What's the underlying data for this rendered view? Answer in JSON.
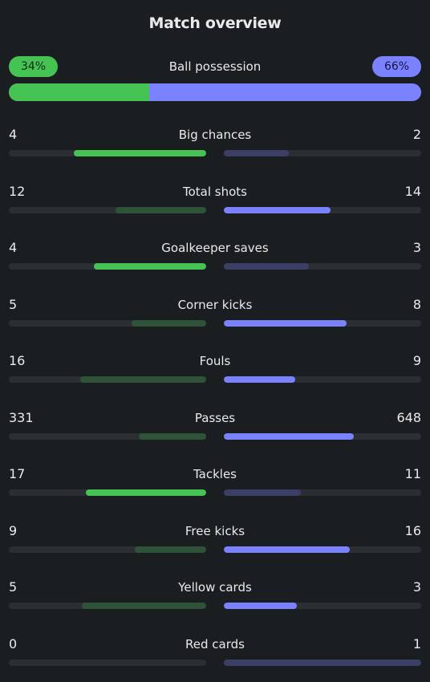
{
  "title": "Match overview",
  "possession": {
    "label": "Ball possession",
    "home_text": "34%",
    "away_text": "66%",
    "home_share": 0.34
  },
  "colors": {
    "home_strong": "#45c453",
    "home_weak": "#2f5336",
    "away_strong": "#7b82ff",
    "away_weak": "#3b3f66",
    "track": "#2b2f33"
  },
  "stats": [
    {
      "label": "Big chances",
      "home": "4",
      "away": "2",
      "home_share": 0.67,
      "away_share": 0.33,
      "leader": "home"
    },
    {
      "label": "Total shots",
      "home": "12",
      "away": "14",
      "home_share": 0.46,
      "away_share": 0.54,
      "leader": "away"
    },
    {
      "label": "Goalkeeper saves",
      "home": "4",
      "away": "3",
      "home_share": 0.57,
      "away_share": 0.43,
      "leader": "home"
    },
    {
      "label": "Corner kicks",
      "home": "5",
      "away": "8",
      "home_share": 0.38,
      "away_share": 0.62,
      "leader": "away"
    },
    {
      "label": "Fouls",
      "home": "16",
      "away": "9",
      "home_share": 0.64,
      "away_share": 0.36,
      "leader": "away"
    },
    {
      "label": "Passes",
      "home": "331",
      "away": "648",
      "home_share": 0.34,
      "away_share": 0.66,
      "leader": "away"
    },
    {
      "label": "Tackles",
      "home": "17",
      "away": "11",
      "home_share": 0.61,
      "away_share": 0.39,
      "leader": "home"
    },
    {
      "label": "Free kicks",
      "home": "9",
      "away": "16",
      "home_share": 0.36,
      "away_share": 0.64,
      "leader": "away"
    },
    {
      "label": "Yellow cards",
      "home": "5",
      "away": "3",
      "home_share": 0.63,
      "away_share": 0.37,
      "leader": "away"
    },
    {
      "label": "Red cards",
      "home": "0",
      "away": "1",
      "home_share": 0.0,
      "away_share": 1.0,
      "leader": "none"
    }
  ]
}
